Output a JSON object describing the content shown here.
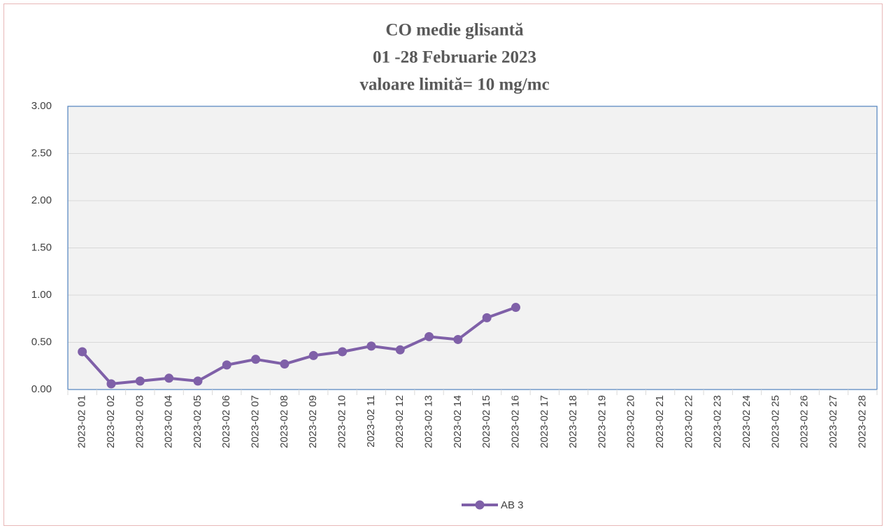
{
  "chart_data": {
    "type": "line",
    "title": [
      "CO medie glisantă",
      "01 -28 Februarie  2023",
      "valoare limită= 10 mg/mc"
    ],
    "categories": [
      "2023-02 01",
      "2023-02 02",
      "2023-02 03",
      "2023-02 04",
      "2023-02 05",
      "2023-02 06",
      "2023-02 07",
      "2023-02 08",
      "2023-02 09",
      "2023-02 10",
      "2023-02 11",
      "2023-02 12",
      "2023-02 13",
      "2023-02 14",
      "2023-02 15",
      "2023-02 16",
      "2023-02 17",
      "2023-02 18",
      "2023-02 19",
      "2023-02 20",
      "2023-02 21",
      "2023-02 22",
      "2023-02 23",
      "2023-02 24",
      "2023-02 25",
      "2023-02 26",
      "2023-02 27",
      "2023-02 28"
    ],
    "series": [
      {
        "name": "AB 3",
        "color": "#7f60a8",
        "values": [
          0.4,
          0.06,
          0.09,
          0.12,
          0.09,
          0.26,
          0.32,
          0.27,
          0.36,
          0.4,
          0.46,
          0.42,
          0.56,
          0.53,
          0.76,
          0.87,
          null,
          null,
          null,
          null,
          null,
          null,
          null,
          null,
          null,
          null,
          null,
          null
        ]
      }
    ],
    "ylim": [
      0,
      3
    ],
    "yticks": [
      {
        "value": 0,
        "label": "0.00"
      },
      {
        "value": 0.5,
        "label": "0.50"
      },
      {
        "value": 1,
        "label": "1.00"
      },
      {
        "value": 1.5,
        "label": "1.50"
      },
      {
        "value": 2,
        "label": "2.00"
      },
      {
        "value": 2.5,
        "label": "2.50"
      },
      {
        "value": 3,
        "label": "3.00"
      }
    ],
    "grid": true,
    "legend": "bottom"
  }
}
